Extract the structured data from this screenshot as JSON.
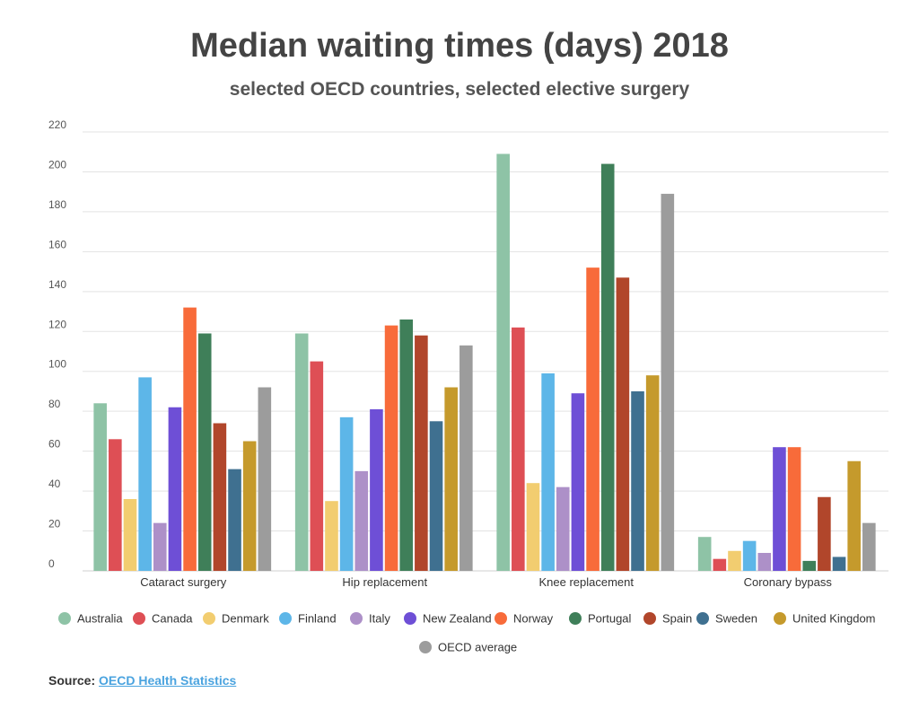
{
  "chart_data": {
    "type": "bar",
    "title": "Median waiting times (days) 2018",
    "subtitle": "selected OECD countries, selected elective surgery",
    "categories": [
      "Cataract surgery",
      "Hip replacement",
      "Knee replacement",
      "Coronary bypass"
    ],
    "ylim": [
      0,
      220
    ],
    "yticks": [
      0,
      20,
      40,
      60,
      80,
      100,
      120,
      140,
      160,
      180,
      200,
      220
    ],
    "grid": true,
    "legend_position": "bottom",
    "series": [
      {
        "name": "Australia",
        "color": "#8ec3a6",
        "values": [
          84,
          119,
          209,
          17
        ]
      },
      {
        "name": "Canada",
        "color": "#de4f55",
        "values": [
          66,
          105,
          122,
          6
        ]
      },
      {
        "name": "Denmark",
        "color": "#f2cd70",
        "values": [
          36,
          35,
          44,
          10
        ]
      },
      {
        "name": "Finland",
        "color": "#5db6e8",
        "values": [
          97,
          77,
          99,
          15
        ]
      },
      {
        "name": "Italy",
        "color": "#ad90c8",
        "values": [
          24,
          50,
          42,
          9
        ]
      },
      {
        "name": "New Zealand",
        "color": "#6e4fd6",
        "values": [
          82,
          81,
          89,
          62
        ]
      },
      {
        "name": "Norway",
        "color": "#f86b3a",
        "values": [
          132,
          123,
          152,
          62
        ]
      },
      {
        "name": "Portugal",
        "color": "#3f7f59",
        "values": [
          119,
          126,
          204,
          5
        ]
      },
      {
        "name": "Spain",
        "color": "#b1462b",
        "values": [
          74,
          118,
          147,
          37
        ]
      },
      {
        "name": "Sweden",
        "color": "#3f7090",
        "values": [
          51,
          75,
          90,
          7
        ]
      },
      {
        "name": "United Kingdom",
        "color": "#c59a2c",
        "values": [
          65,
          92,
          98,
          55
        ]
      },
      {
        "name": "OECD average",
        "color": "#9c9c9c",
        "values": [
          92,
          113,
          189,
          24
        ]
      }
    ]
  },
  "source": {
    "label": "Source:",
    "link_text": "OECD Health Statistics"
  }
}
